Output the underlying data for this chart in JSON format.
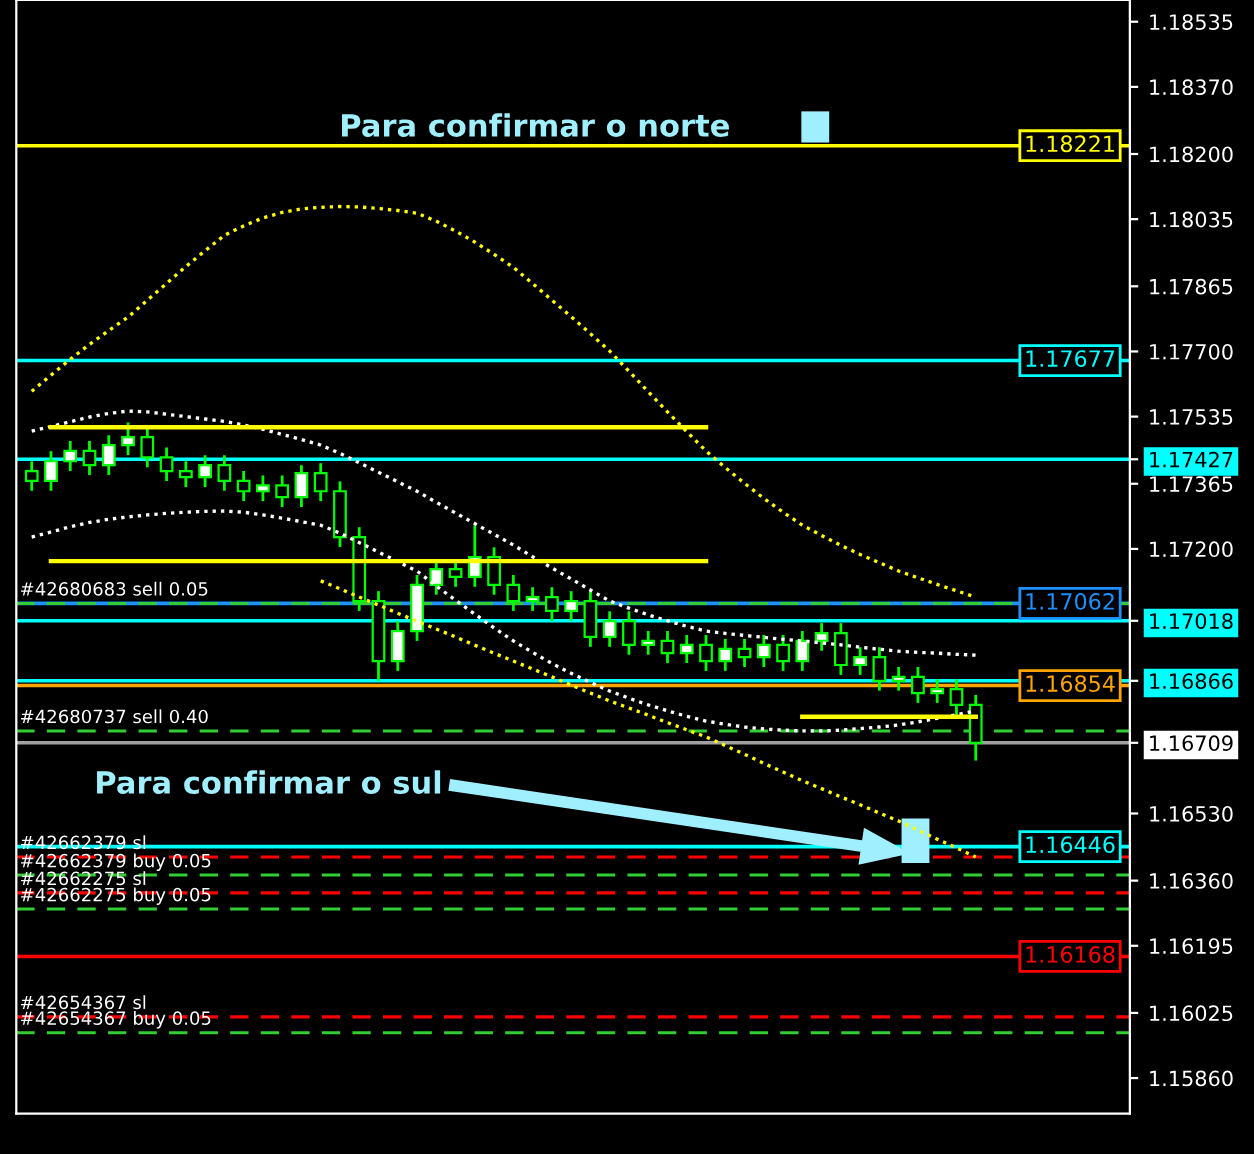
{
  "chart_data": {
    "type": "candlestick",
    "categories": [
      null,
      null,
      null,
      null,
      null,
      null,
      null,
      null,
      null,
      null,
      null,
      null,
      null,
      null,
      null,
      null,
      null,
      null,
      null,
      null,
      null,
      null,
      null,
      null,
      null,
      null,
      null,
      null,
      null,
      null,
      null,
      null,
      null,
      null,
      null,
      null,
      null,
      null,
      null,
      null,
      null,
      null,
      null,
      null,
      null,
      null,
      null,
      null,
      null,
      null
    ],
    "ohlc": [
      [
        1.17397,
        1.17422,
        1.17347,
        1.17372
      ],
      [
        1.17372,
        1.17447,
        1.17347,
        1.17422
      ],
      [
        1.17422,
        1.17473,
        1.17397,
        1.17448
      ],
      [
        1.17448,
        1.17473,
        1.17387,
        1.17412
      ],
      [
        1.17412,
        1.17488,
        1.17387,
        1.17463
      ],
      [
        1.17463,
        1.1752,
        1.17438,
        1.17483
      ],
      [
        1.17483,
        1.17508,
        1.17407,
        1.17432
      ],
      [
        1.17432,
        1.17457,
        1.17372,
        1.17397
      ],
      [
        1.17397,
        1.17422,
        1.17357,
        1.17382
      ],
      [
        1.17382,
        1.17437,
        1.17357,
        1.17412
      ],
      [
        1.17412,
        1.17437,
        1.17347,
        1.17372
      ],
      [
        1.17372,
        1.17397,
        1.17321,
        1.17346
      ],
      [
        1.17346,
        1.17386,
        1.17321,
        1.17361
      ],
      [
        1.17361,
        1.17386,
        1.17306,
        1.17331
      ],
      [
        1.17331,
        1.17412,
        1.17306,
        1.17392
      ],
      [
        1.17392,
        1.17417,
        1.17321,
        1.17346
      ],
      [
        1.17346,
        1.17371,
        1.17205,
        1.1723
      ],
      [
        1.1723,
        1.17255,
        1.17043,
        1.17068
      ],
      [
        1.17068,
        1.17093,
        1.16866,
        1.16916
      ],
      [
        1.16916,
        1.17017,
        1.16891,
        1.16992
      ],
      [
        1.16992,
        1.17134,
        1.16967,
        1.17109
      ],
      [
        1.17109,
        1.17174,
        1.17084,
        1.17149
      ],
      [
        1.17149,
        1.17174,
        1.17104,
        1.17129
      ],
      [
        1.17129,
        1.1726,
        1.17104,
        1.17179
      ],
      [
        1.17179,
        1.17204,
        1.17084,
        1.17109
      ],
      [
        1.17109,
        1.17134,
        1.17043,
        1.17068
      ],
      [
        1.17068,
        1.17103,
        1.17043,
        1.17078
      ],
      [
        1.17078,
        1.17103,
        1.17018,
        1.17043
      ],
      [
        1.17043,
        1.17093,
        1.17018,
        1.17068
      ],
      [
        1.17068,
        1.17093,
        1.16952,
        1.16977
      ],
      [
        1.16977,
        1.17042,
        1.16952,
        1.17017
      ],
      [
        1.17017,
        1.17042,
        1.16932,
        1.16957
      ],
      [
        1.16957,
        1.16992,
        1.16932,
        1.16967
      ],
      [
        1.16967,
        1.16992,
        1.16911,
        1.16936
      ],
      [
        1.16936,
        1.16982,
        1.16911,
        1.16957
      ],
      [
        1.16957,
        1.16982,
        1.16891,
        1.16916
      ],
      [
        1.16916,
        1.16972,
        1.16891,
        1.16947
      ],
      [
        1.16947,
        1.16972,
        1.16901,
        1.16926
      ],
      [
        1.16926,
        1.16982,
        1.16901,
        1.16957
      ],
      [
        1.16957,
        1.16982,
        1.16891,
        1.16916
      ],
      [
        1.16916,
        1.16992,
        1.16891,
        1.16967
      ],
      [
        1.16967,
        1.17012,
        1.16942,
        1.16987
      ],
      [
        1.16987,
        1.17012,
        1.16881,
        1.16906
      ],
      [
        1.16906,
        1.16951,
        1.16881,
        1.16926
      ],
      [
        1.16926,
        1.16951,
        1.16841,
        1.16866
      ],
      [
        1.16866,
        1.16901,
        1.16841,
        1.16876
      ],
      [
        1.16876,
        1.16901,
        1.1681,
        1.16835
      ],
      [
        1.16835,
        1.1687,
        1.1681,
        1.16845
      ],
      [
        1.16845,
        1.1687,
        1.1678,
        1.16805
      ],
      [
        1.16805,
        1.1683,
        1.16664,
        1.16709
      ]
    ],
    "series": [
      {
        "type": "line",
        "color": "#ffff00",
        "line_style": "dotted",
        "values": [
          1.17599,
          1.1764,
          1.1768,
          1.17718,
          1.17753,
          1.17787,
          1.1783,
          1.17872,
          1.17915,
          1.17955,
          1.17994,
          1.18018,
          1.18038,
          1.18052,
          1.18061,
          1.18065,
          1.18067,
          1.18066,
          1.18062,
          1.18057,
          1.1805,
          1.1803,
          1.18005,
          1.17977,
          1.17946,
          1.17913,
          1.17872,
          1.1783,
          1.17788,
          1.17745,
          1.17701,
          1.1765,
          1.17598,
          1.17547,
          1.17497,
          1.17448,
          1.17406,
          1.17366,
          1.17328,
          1.17293,
          1.1726,
          1.17234,
          1.17209,
          1.17186,
          1.17165,
          1.17144,
          1.17127,
          1.1711,
          1.17094,
          1.17078
        ]
      },
      {
        "type": "line",
        "color": "#ffff00",
        "line_style": "dotted",
        "values": [
          null,
          null,
          null,
          null,
          null,
          null,
          null,
          null,
          null,
          null,
          null,
          null,
          null,
          null,
          null,
          1.17119,
          1.17099,
          1.17078,
          1.17058,
          1.17037,
          1.17017,
          1.16997,
          1.16977,
          1.16956,
          1.16936,
          1.16916,
          1.16896,
          1.16876,
          1.16855,
          1.16835,
          1.16815,
          1.16797,
          1.16779,
          1.1676,
          1.16742,
          1.16724,
          1.16702,
          1.1668,
          1.16657,
          1.16635,
          1.16613,
          1.16593,
          1.16572,
          1.16552,
          1.16531,
          1.16511,
          1.16488,
          1.16465,
          1.16443,
          1.1642
        ]
      },
      {
        "type": "line",
        "color": "#ffffff",
        "line_style": "dotted",
        "values": [
          1.17498,
          1.1751,
          1.17522,
          1.17534,
          1.17543,
          1.17549,
          1.17547,
          1.17541,
          1.17535,
          1.17529,
          1.17523,
          1.17514,
          1.17503,
          1.1749,
          1.17477,
          1.17463,
          1.17442,
          1.17418,
          1.17394,
          1.1737,
          1.17346,
          1.17318,
          1.17291,
          1.17264,
          1.17237,
          1.1721,
          1.1718,
          1.17152,
          1.17124,
          1.17096,
          1.17068,
          1.1705,
          1.17033,
          1.17018,
          1.17004,
          1.16992,
          1.16986,
          1.16981,
          1.16976,
          1.16971,
          1.16967,
          1.16962,
          1.16957,
          1.16951,
          1.16946,
          1.16941,
          1.16938,
          1.16936,
          1.16933,
          1.16931
        ]
      },
      {
        "type": "line",
        "color": "#ffffff",
        "line_style": "dotted",
        "values": [
          1.1723,
          1.17243,
          1.17256,
          1.17267,
          1.17275,
          1.17281,
          1.17286,
          1.1729,
          1.17293,
          1.17295,
          1.17296,
          1.17293,
          1.17286,
          1.17278,
          1.17269,
          1.1726,
          1.1724,
          1.17216,
          1.17192,
          1.17168,
          1.17144,
          1.17106,
          1.1707,
          1.17035,
          1.17,
          1.16967,
          1.16938,
          1.1691,
          1.16885,
          1.16862,
          1.1684,
          1.16822,
          1.16805,
          1.1679,
          1.16776,
          1.16764,
          1.16756,
          1.16749,
          1.16744,
          1.16741,
          1.16739,
          1.16739,
          1.16741,
          1.16745,
          1.16749,
          1.16754,
          1.16762,
          1.16771,
          1.1678,
          1.1679
        ]
      },
      {
        "type": "line",
        "color": "#ffff00",
        "line_style": "solid",
        "values": [
          null,
          1.17508,
          1.17508,
          1.17508,
          1.17508,
          1.17508,
          1.17508,
          1.17508,
          1.17508,
          1.17508,
          1.17508,
          1.17508,
          1.17508,
          1.17508,
          1.17508,
          1.17508,
          1.17508,
          1.17508,
          1.17508,
          1.17508,
          1.17508,
          1.17508,
          1.17508,
          1.17508,
          1.17508,
          1.17508,
          1.17508,
          1.17508,
          1.17508,
          1.17508,
          1.17508,
          1.17508,
          1.17508,
          1.17508,
          1.17508,
          1.17508,
          null,
          null,
          null,
          null,
          null,
          null,
          null,
          null,
          null,
          null,
          null,
          null,
          null,
          null
        ]
      },
      {
        "type": "line",
        "color": "#ffff00",
        "line_style": "solid",
        "values": [
          null,
          1.17169,
          1.17169,
          1.17169,
          1.17169,
          1.17169,
          1.17169,
          1.17169,
          1.17169,
          1.17169,
          1.17169,
          1.17169,
          1.17169,
          1.17169,
          1.17169,
          1.17169,
          1.17169,
          1.17169,
          1.17169,
          1.17169,
          1.17169,
          1.17169,
          1.17169,
          1.17169,
          1.17169,
          1.17169,
          1.17169,
          1.17169,
          1.17169,
          1.17169,
          1.17169,
          1.17169,
          1.17169,
          1.17169,
          1.17169,
          1.17169,
          null,
          null,
          null,
          null,
          null,
          null,
          null,
          null,
          null,
          null,
          null,
          null,
          null,
          null
        ]
      },
      {
        "type": "line",
        "color": "#ffff00",
        "line_style": "solid",
        "values": [
          null,
          null,
          null,
          null,
          null,
          null,
          null,
          null,
          null,
          null,
          null,
          null,
          null,
          null,
          null,
          null,
          null,
          null,
          null,
          null,
          null,
          null,
          null,
          null,
          null,
          null,
          null,
          null,
          null,
          null,
          null,
          null,
          null,
          null,
          null,
          null,
          null,
          null,
          null,
          null,
          1.16775,
          1.16775,
          1.16775,
          1.16775,
          1.16775,
          1.16775,
          1.16775,
          1.16775,
          1.16775,
          1.16775
        ]
      }
    ],
    "ylim": [
      1.1577,
      1.1859
    ],
    "yticks": [
      1.18535,
      {
        "value": 1.1837,
        "label": "1.18370"
      },
      {
        "value": 1.182,
        "label": "1.18200"
      },
      1.18035,
      1.17865,
      {
        "value": 1.177,
        "label": "1.17700"
      },
      1.17535,
      1.17427,
      1.17365,
      {
        "value": 1.172,
        "label": "1.17200"
      },
      1.17018,
      1.16866,
      1.16709,
      {
        "value": 1.1653,
        "label": "1.16530"
      },
      {
        "value": 1.1636,
        "label": "1.16360"
      },
      1.16195,
      1.16025,
      {
        "value": 1.1586,
        "label": "1.15860"
      }
    ],
    "tick_labels": "y",
    "ref_lines": [
      {
        "axis": "y",
        "value": 1.18221,
        "label": "1.18221",
        "color": "#ffff00",
        "line_style": "solid"
      },
      {
        "axis": "y",
        "value": 1.17677,
        "label": "1.17677",
        "color": "#00ffff",
        "line_style": "solid"
      },
      {
        "axis": "y",
        "value": 1.17427,
        "color": "#00ffff",
        "line_style": "solid"
      },
      {
        "axis": "y",
        "value": 1.17062,
        "label": "1.17062",
        "color": "#1e90ff",
        "line_style": "solid"
      },
      {
        "axis": "y",
        "value": 1.17062,
        "label": "#42680683 sell 0.05",
        "color": "#32cd32",
        "line_style": "dashed"
      },
      {
        "axis": "y",
        "value": 1.17018,
        "color": "#00ffff",
        "line_style": "solid"
      },
      {
        "axis": "y",
        "value": 1.16866,
        "color": "#00ffff",
        "line_style": "solid"
      },
      {
        "axis": "y",
        "value": 1.16854,
        "label": "1.16854",
        "color": "#ffa500",
        "line_style": "solid"
      },
      {
        "axis": "y",
        "value": 1.16739,
        "label": "#42680737 sell 0.40",
        "color": "#32cd32",
        "line_style": "dashed"
      },
      {
        "axis": "y",
        "value": 1.16709,
        "color": "#a0a0a0",
        "line_style": "solid"
      },
      {
        "axis": "y",
        "value": 1.16446,
        "label": "1.16446",
        "color": "#00ffff",
        "line_style": "solid"
      },
      {
        "axis": "y",
        "value": 1.1642,
        "label": "#42662379 sl",
        "color": "#ff0000",
        "line_style": "dashed"
      },
      {
        "axis": "y",
        "value": 1.16374,
        "label": "#42662379 buy 0.05",
        "color": "#32cd32",
        "line_style": "dashed"
      },
      {
        "axis": "y",
        "value": 1.16329,
        "label": "#42662275 sl",
        "color": "#ff0000",
        "line_style": "dashed"
      },
      {
        "axis": "y",
        "value": 1.16288,
        "label": "#42662275 buy 0.05",
        "color": "#32cd32",
        "line_style": "dashed"
      },
      {
        "axis": "y",
        "value": 1.16168,
        "label": "1.16168",
        "color": "#ff0000",
        "line_style": "solid"
      },
      {
        "axis": "y",
        "value": 1.16015,
        "label": "#42654367 sl",
        "color": "#ff0000",
        "line_style": "dashed"
      },
      {
        "axis": "y",
        "value": 1.15975,
        "label": "#42654367 buy 0.05",
        "color": "#32cd32",
        "line_style": "dashed"
      }
    ],
    "annotations": [
      "Para confirmar o norte",
      "Para confirmar o sul"
    ]
  }
}
